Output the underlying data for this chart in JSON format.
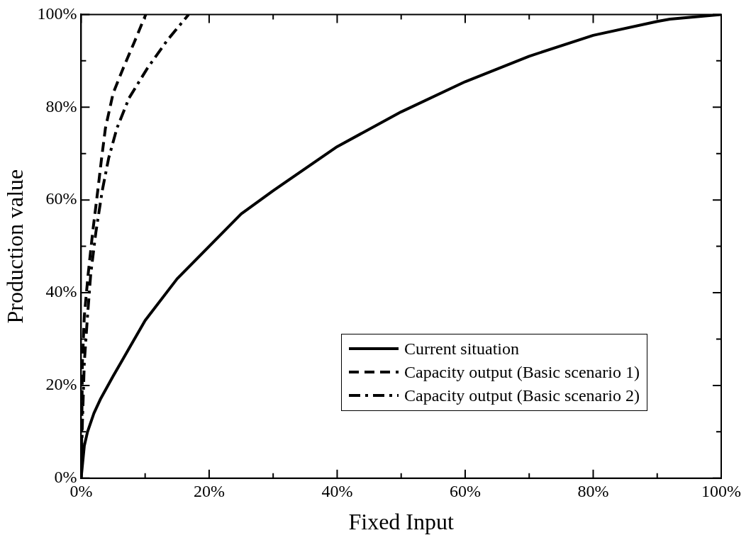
{
  "chart_data": {
    "type": "line",
    "xlabel": "Fixed Input",
    "ylabel": "Production value",
    "xlim": [
      0,
      100
    ],
    "ylim": [
      0,
      100
    ],
    "xticks": [
      {
        "value": 0,
        "label": "0%"
      },
      {
        "value": 10,
        "label": null
      },
      {
        "value": 20,
        "label": "20%"
      },
      {
        "value": 30,
        "label": null
      },
      {
        "value": 40,
        "label": "40%"
      },
      {
        "value": 50,
        "label": null
      },
      {
        "value": 60,
        "label": "60%"
      },
      {
        "value": 70,
        "label": null
      },
      {
        "value": 80,
        "label": "80%"
      },
      {
        "value": 90,
        "label": null
      },
      {
        "value": 100,
        "label": "100%"
      }
    ],
    "yticks": [
      {
        "value": 0,
        "label": "0%"
      },
      {
        "value": 10,
        "label": null
      },
      {
        "value": 20,
        "label": "20%"
      },
      {
        "value": 30,
        "label": null
      },
      {
        "value": 40,
        "label": "40%"
      },
      {
        "value": 50,
        "label": null
      },
      {
        "value": 60,
        "label": "60%"
      },
      {
        "value": 70,
        "label": null
      },
      {
        "value": 80,
        "label": "80%"
      },
      {
        "value": 90,
        "label": null
      },
      {
        "value": 100,
        "label": "100%"
      }
    ],
    "grid": false,
    "legend": "bottom right",
    "marker": "none",
    "series": [
      {
        "name": "Current situation",
        "color": "#000000",
        "line_style": "solid",
        "x": [
          0,
          0.5,
          1,
          2,
          3,
          5,
          7.5,
          10,
          15,
          20,
          25,
          30,
          40,
          50,
          60,
          70,
          80,
          90,
          92,
          100
        ],
        "values": [
          0,
          7,
          10,
          14,
          17,
          22,
          28,
          34,
          43,
          50,
          57,
          62,
          71.5,
          79,
          85.5,
          91,
          95.5,
          98.5,
          99,
          100
        ]
      },
      {
        "name": "Capacity output (Basic scenario 1)",
        "color": "#000000",
        "line_style": "dashed",
        "x": [
          0,
          0.1,
          0.2,
          0.5,
          1.1,
          1.8,
          2.6,
          3.2,
          3.8,
          5,
          6.6,
          8.3,
          10.1
        ],
        "values": [
          0,
          10,
          25,
          35,
          44,
          53,
          62,
          69,
          75.5,
          83,
          88.5,
          94,
          100
        ]
      },
      {
        "name": "Capacity output (Basic scenario 2)",
        "color": "#000000",
        "line_style": "dashdot",
        "x": [
          0,
          0.2,
          0.5,
          1,
          1.5,
          2.3,
          3.3,
          4.3,
          5.6,
          7.5,
          10.4,
          13.5,
          16.8
        ],
        "values": [
          0,
          12,
          25,
          35,
          44,
          53,
          62,
          69,
          75.5,
          82,
          88.5,
          94.5,
          100
        ]
      }
    ]
  }
}
